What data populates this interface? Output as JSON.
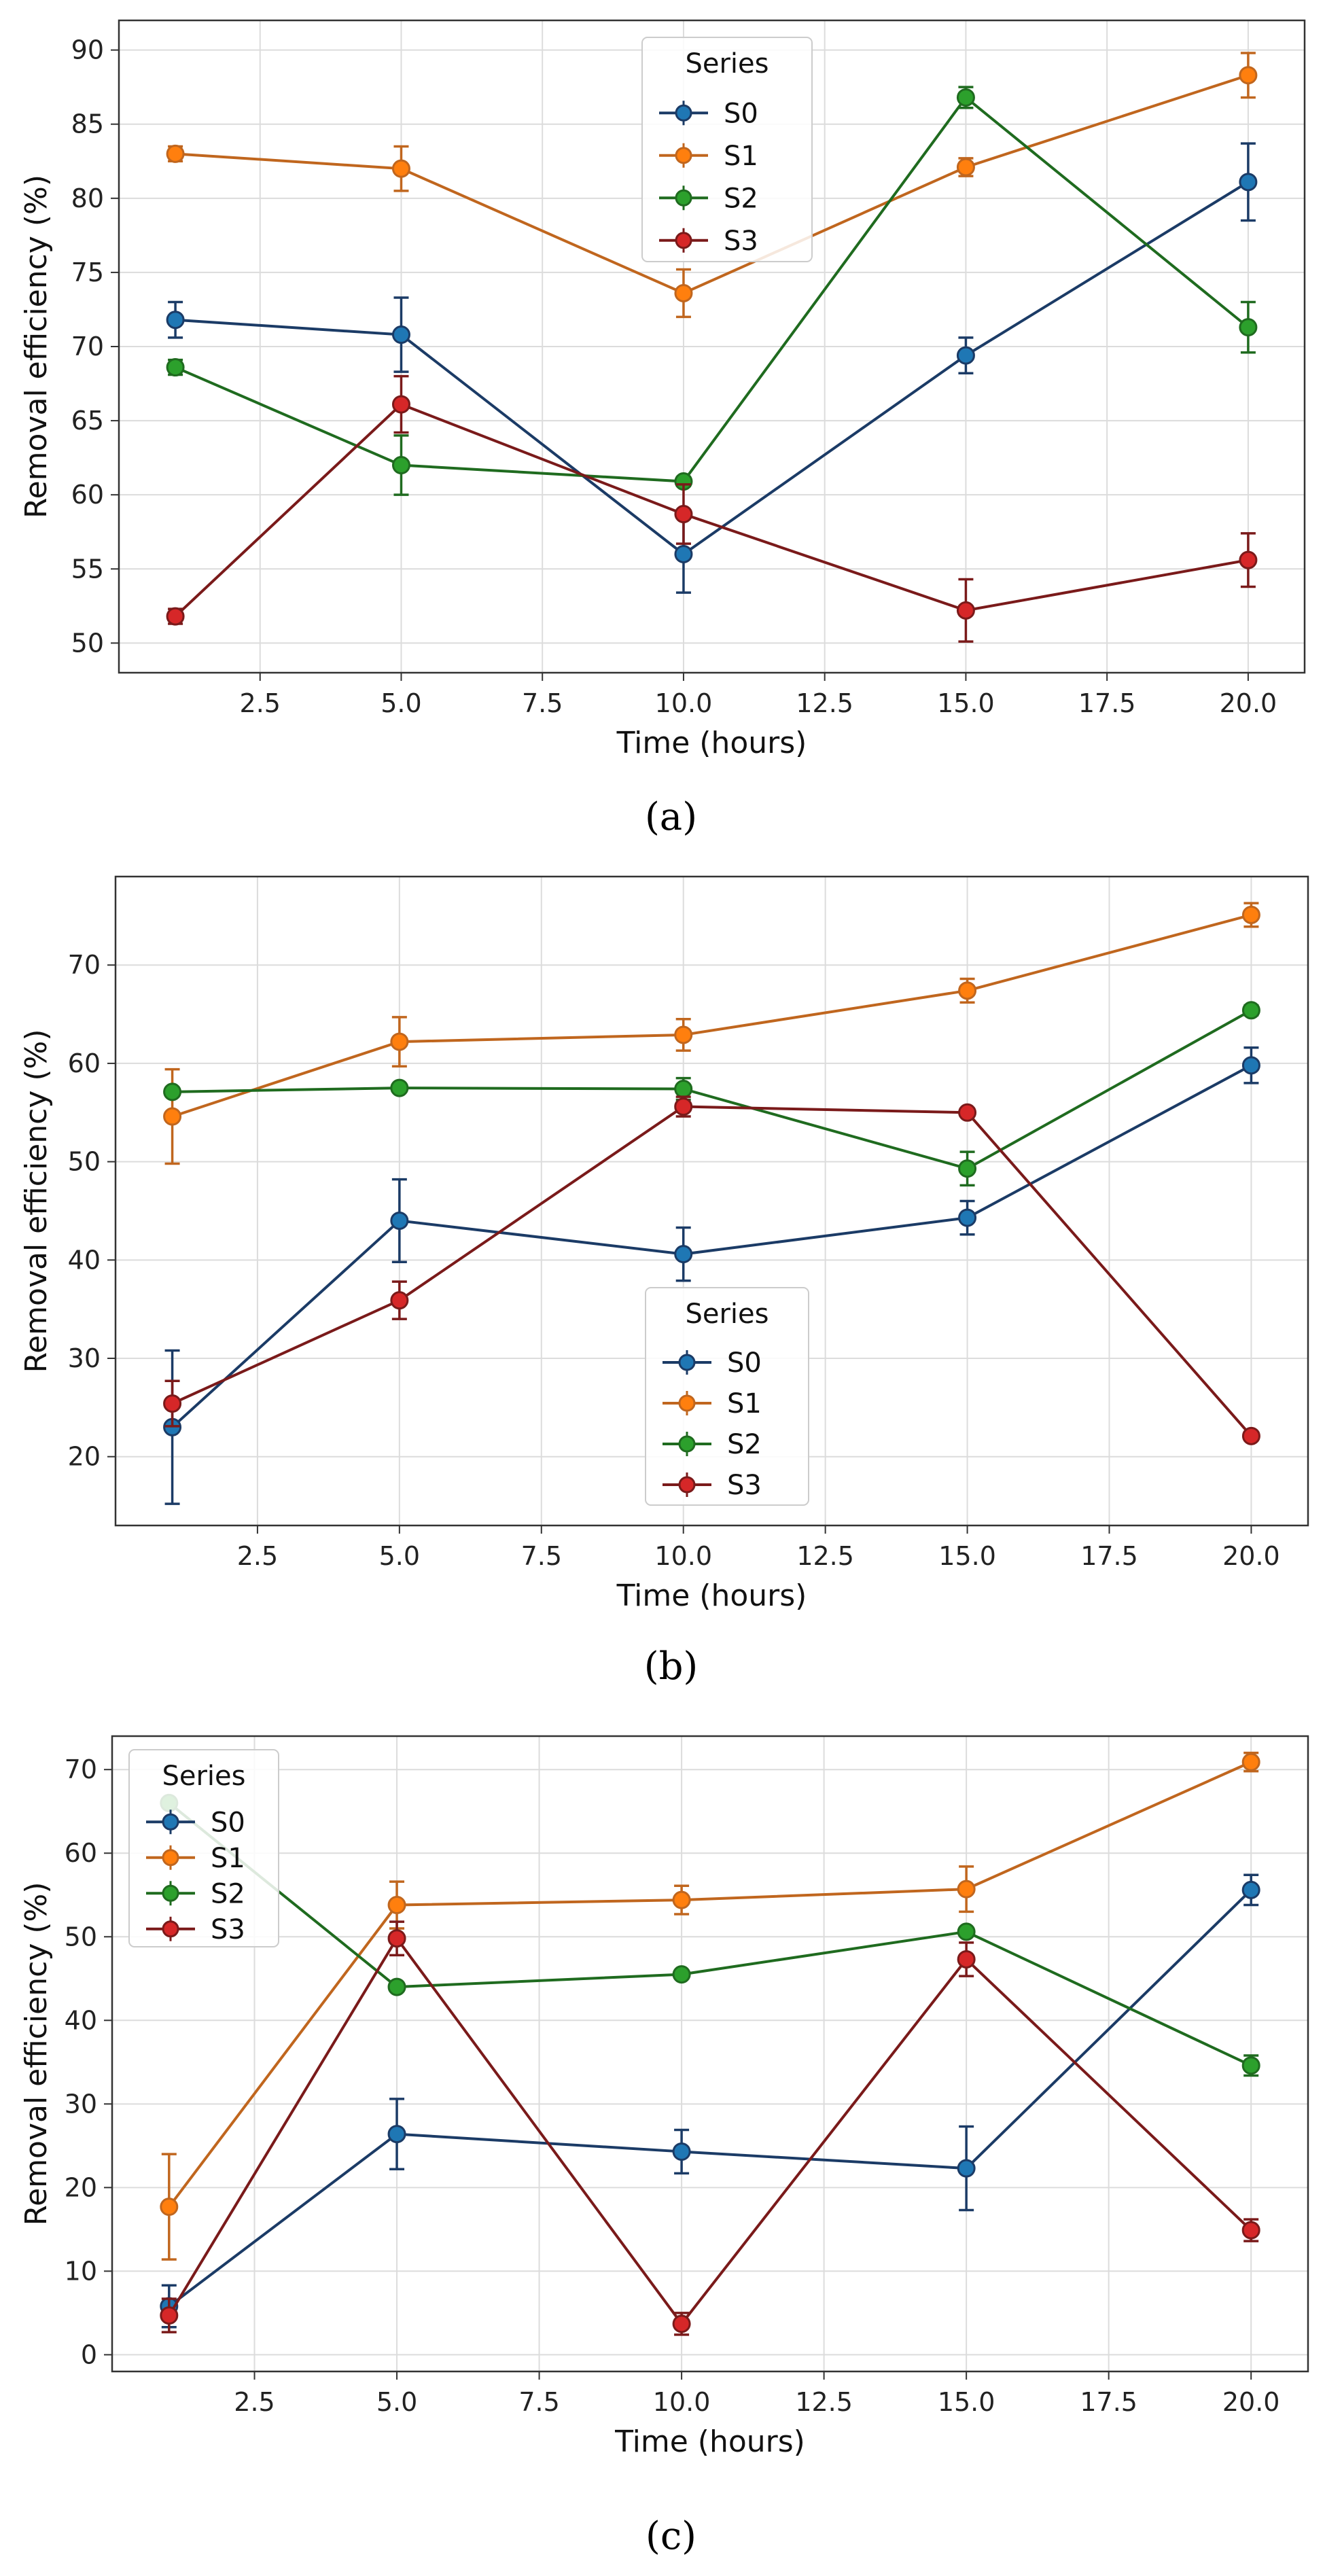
{
  "figure": {
    "panels": [
      {
        "label": "(a)",
        "letter": "a"
      },
      {
        "label": "(b)",
        "letter": "b"
      },
      {
        "label": "(c)",
        "letter": "c"
      }
    ]
  },
  "chart_data": [
    {
      "type": "line",
      "panel": "a",
      "title": "",
      "xlabel": "Time (hours)",
      "ylabel": "Removal efficiency (%)",
      "x": [
        1,
        5,
        10,
        15,
        20
      ],
      "xlim": [
        0,
        21
      ],
      "ylim": [
        48,
        92
      ],
      "xticks": [
        "2.5",
        "5.0",
        "7.5",
        "10.0",
        "12.5",
        "15.0",
        "17.5",
        "20.0"
      ],
      "yticks": [
        "50",
        "55",
        "60",
        "65",
        "70",
        "75",
        "80",
        "85",
        "90"
      ],
      "grid": true,
      "legend_title": "Series",
      "legend_position": "top-center",
      "series": [
        {
          "name": "S0",
          "color": "#1f77b4",
          "line_color": "#1b3b66",
          "values": [
            71.8,
            70.8,
            56.0,
            69.4,
            81.1
          ],
          "errors": [
            1.2,
            2.5,
            2.6,
            1.2,
            2.6
          ]
        },
        {
          "name": "S1",
          "color": "#ff7f0e",
          "line_color": "#c0661e",
          "values": [
            83.0,
            82.0,
            73.6,
            82.1,
            88.3
          ],
          "errors": [
            0.5,
            1.5,
            1.6,
            0.6,
            1.5
          ]
        },
        {
          "name": "S2",
          "color": "#2ca02c",
          "line_color": "#1f6b1f",
          "values": [
            68.6,
            62.0,
            60.9,
            86.8,
            71.3
          ],
          "errors": [
            0.5,
            2.0,
            0.3,
            0.7,
            1.7
          ]
        },
        {
          "name": "S3",
          "color": "#d62728",
          "line_color": "#7a1a1a",
          "values": [
            51.8,
            66.1,
            58.7,
            52.2,
            55.6
          ],
          "errors": [
            0.5,
            1.9,
            2.0,
            2.1,
            1.8
          ]
        }
      ]
    },
    {
      "type": "line",
      "panel": "b",
      "title": "",
      "xlabel": "Time (hours)",
      "ylabel": "Removal efficiency (%)",
      "x": [
        1,
        5,
        10,
        15,
        20
      ],
      "xlim": [
        0,
        21
      ],
      "ylim": [
        13,
        79
      ],
      "xticks": [
        "2.5",
        "5.0",
        "7.5",
        "10.0",
        "12.5",
        "15.0",
        "17.5",
        "20.0"
      ],
      "yticks": [
        "20",
        "30",
        "40",
        "50",
        "60",
        "70"
      ],
      "grid": true,
      "legend_title": "Series",
      "legend_position": "lower-center",
      "series": [
        {
          "name": "S0",
          "color": "#1f77b4",
          "line_color": "#1b3b66",
          "values": [
            23.0,
            44.0,
            40.6,
            44.3,
            59.8
          ],
          "errors": [
            7.8,
            4.2,
            2.7,
            1.7,
            1.8
          ]
        },
        {
          "name": "S1",
          "color": "#ff7f0e",
          "line_color": "#c0661e",
          "values": [
            54.6,
            62.2,
            62.9,
            67.4,
            75.1
          ],
          "errors": [
            4.8,
            2.5,
            1.6,
            1.2,
            1.2
          ]
        },
        {
          "name": "S2",
          "color": "#2ca02c",
          "line_color": "#1f6b1f",
          "values": [
            57.1,
            57.5,
            57.4,
            49.3,
            65.4
          ],
          "errors": [
            0.4,
            0.4,
            1.1,
            1.7,
            0.5
          ]
        },
        {
          "name": "S3",
          "color": "#d62728",
          "line_color": "#7a1a1a",
          "values": [
            25.4,
            35.9,
            55.6,
            55.0,
            22.1
          ],
          "errors": [
            2.3,
            1.9,
            1.0,
            0.4,
            0.4
          ]
        }
      ]
    },
    {
      "type": "line",
      "panel": "c",
      "title": "",
      "xlabel": "Time (hours)",
      "ylabel": "Removal efficiency (%)",
      "x": [
        1,
        5,
        10,
        15,
        20
      ],
      "xlim": [
        0,
        21
      ],
      "ylim": [
        -2,
        74
      ],
      "xticks": [
        "2.5",
        "5.0",
        "7.5",
        "10.0",
        "12.5",
        "15.0",
        "17.5",
        "20.0"
      ],
      "yticks": [
        "0",
        "10",
        "20",
        "30",
        "40",
        "50",
        "60",
        "70"
      ],
      "grid": true,
      "legend_title": "Series",
      "legend_position": "upper-left",
      "series": [
        {
          "name": "S0",
          "color": "#1f77b4",
          "line_color": "#1b3b66",
          "values": [
            5.8,
            26.4,
            24.3,
            22.3,
            55.6
          ],
          "errors": [
            2.5,
            4.2,
            2.6,
            5.0,
            1.8
          ]
        },
        {
          "name": "S1",
          "color": "#ff7f0e",
          "line_color": "#c0661e",
          "values": [
            17.7,
            53.8,
            54.4,
            55.7,
            70.9
          ],
          "errors": [
            6.3,
            2.8,
            1.7,
            2.7,
            1.1
          ]
        },
        {
          "name": "S2",
          "color": "#2ca02c",
          "line_color": "#1f6b1f",
          "values": [
            66.0,
            44.0,
            45.5,
            50.6,
            34.6
          ],
          "errors": [
            0.5,
            0.5,
            0.5,
            0.5,
            1.2
          ]
        },
        {
          "name": "S3",
          "color": "#d62728",
          "line_color": "#7a1a1a",
          "values": [
            4.7,
            49.8,
            3.7,
            47.3,
            14.9
          ],
          "errors": [
            2.0,
            2.0,
            1.3,
            2.0,
            1.3
          ]
        }
      ]
    }
  ]
}
